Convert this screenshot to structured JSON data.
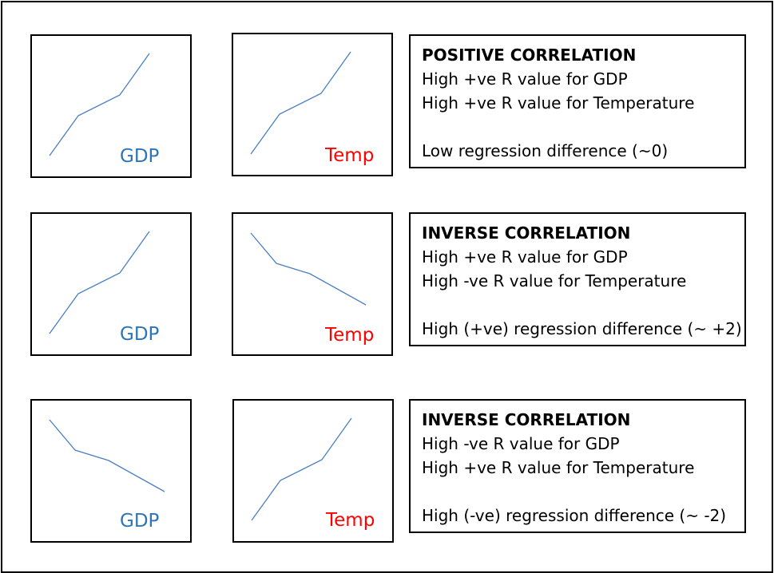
{
  "rows": [
    {
      "gdp_label": "GDP",
      "temp_label": "Temp",
      "gdp_trend": "rising",
      "temp_trend": "rising",
      "heading": "POSITIVE CORRELATION",
      "line1": "High +ve R value for GDP",
      "line2": "High +ve R value for Temperature",
      "line3": "",
      "line4": "Low regression difference (~0)"
    },
    {
      "gdp_label": "GDP",
      "temp_label": "Temp",
      "gdp_trend": "rising",
      "temp_trend": "falling",
      "heading": "INVERSE CORRELATION",
      "line1": "High +ve R value for GDP",
      "line2": "High -ve R value for Temperature",
      "line3": "",
      "line4": "High (+ve) regression difference (~ +2)"
    },
    {
      "gdp_label": "GDP",
      "temp_label": "Temp",
      "gdp_trend": "falling",
      "temp_trend": "rising",
      "heading": "INVERSE CORRELATION",
      "line1": "High -ve R value for GDP",
      "line2": "High +ve R value for Temperature",
      "line3": "",
      "line4": "High (-ve) regression difference (~ -2)"
    }
  ],
  "colors": {
    "line": "#4a7fc1",
    "gdp": "#2e75b6",
    "temp": "#ff0000"
  }
}
